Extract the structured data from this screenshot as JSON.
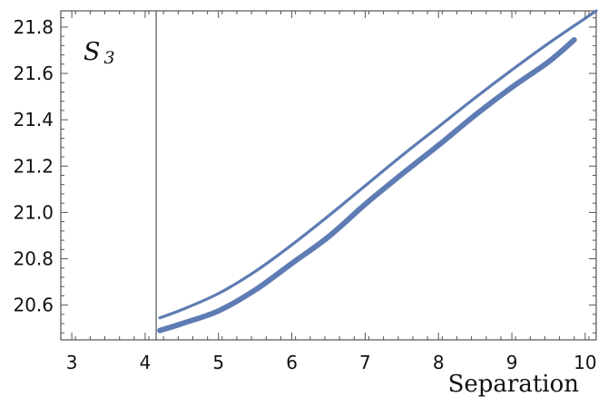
{
  "chart_data": {
    "type": "line",
    "title": "",
    "xlabel": "Separation",
    "ylabel": "",
    "xlim": [
      2.85,
      10.15
    ],
    "ylim": [
      20.45,
      21.87
    ],
    "x_ticks": [
      3,
      4,
      5,
      6,
      7,
      8,
      9,
      10
    ],
    "x_tick_labels": [
      "3",
      "4",
      "5",
      "6",
      "7",
      "8",
      "9",
      "10"
    ],
    "y_ticks": [
      20.6,
      20.8,
      21.0,
      21.2,
      21.4,
      21.6,
      21.8
    ],
    "y_tick_labels": [
      "20.6",
      "20.8",
      "21.0",
      "21.2",
      "21.4",
      "21.6",
      "21.8"
    ],
    "grid": false,
    "annotation": {
      "text": "S",
      "subscript": "3"
    },
    "vertical_reference_line": {
      "x": 4.15
    },
    "colors": {
      "series": "#5e7cb3",
      "axis": "#555555"
    },
    "series": [
      {
        "style": "thin",
        "x": [
          4.2,
          4.5,
          5.0,
          5.5,
          6.0,
          6.5,
          7.0,
          7.5,
          8.0,
          8.5,
          9.0,
          9.5,
          10.15
        ],
        "y": [
          20.545,
          20.58,
          20.65,
          20.745,
          20.86,
          20.985,
          21.115,
          21.245,
          21.37,
          21.495,
          21.615,
          21.73,
          21.87
        ]
      },
      {
        "style": "thick",
        "x": [
          4.2,
          4.5,
          5.0,
          5.5,
          6.0,
          6.5,
          7.0,
          7.5,
          8.0,
          8.5,
          9.0,
          9.5,
          9.85
        ],
        "y": [
          20.49,
          20.52,
          20.575,
          20.665,
          20.78,
          20.895,
          21.035,
          21.165,
          21.29,
          21.42,
          21.54,
          21.65,
          21.745
        ]
      }
    ]
  }
}
